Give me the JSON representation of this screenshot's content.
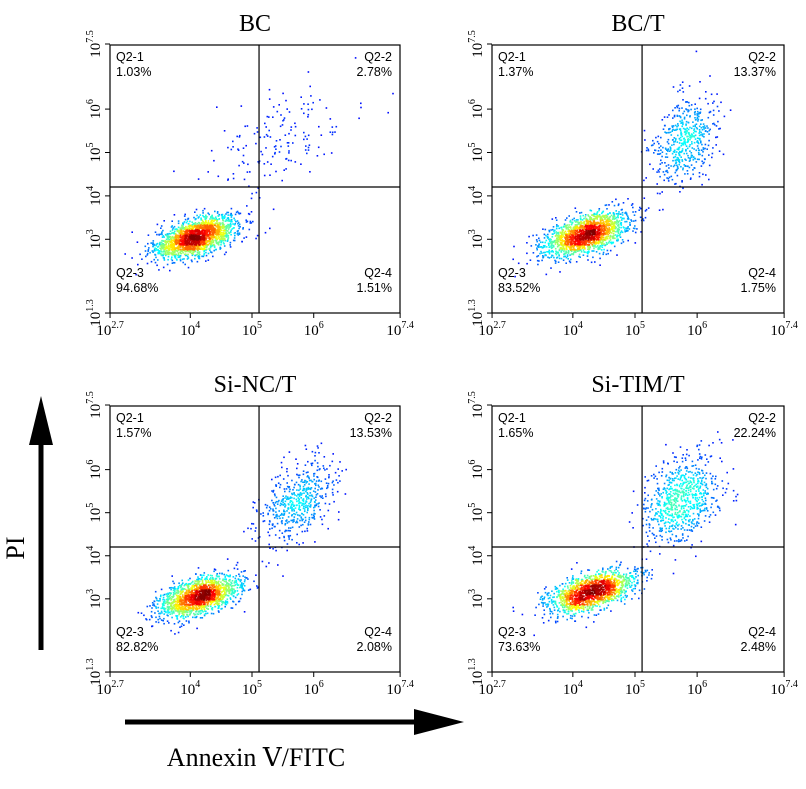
{
  "figure": {
    "x_axis_title": "Annexin Ⅴ/FITC",
    "y_axis_title": "PI"
  },
  "chart_data": [
    {
      "type": "scatter",
      "title": "BC",
      "x_scale": "log",
      "y_scale": "log",
      "xlim": [
        500,
        25000000
      ],
      "ylim": [
        20,
        30000000
      ],
      "x_ticks": [
        {
          "base": "10",
          "exp": "2.7"
        },
        {
          "base": "10",
          "exp": "4"
        },
        {
          "base": "10",
          "exp": "5"
        },
        {
          "base": "10",
          "exp": "6"
        },
        {
          "base": "10",
          "exp": "7.4"
        }
      ],
      "y_ticks": [
        {
          "base": "10",
          "exp": "1.3"
        },
        {
          "base": "10",
          "exp": "3"
        },
        {
          "base": "10",
          "exp": "4"
        },
        {
          "base": "10",
          "exp": "5"
        },
        {
          "base": "10",
          "exp": "6"
        },
        {
          "base": "10",
          "exp": "7.5"
        }
      ],
      "gate": {
        "x": 130000,
        "y": 16000
      },
      "quadrants": [
        {
          "name": "Q2-1",
          "percent": "1.03%"
        },
        {
          "name": "Q2-2",
          "percent": "2.78%"
        },
        {
          "name": "Q2-3",
          "percent": "94.68%"
        },
        {
          "name": "Q2-4",
          "percent": "1.51%"
        }
      ],
      "populations": [
        {
          "log_x": 4.1,
          "log_y": 3.05,
          "sd_x": 0.33,
          "sd_y": 0.24,
          "rho": 0.55,
          "n": 1900
        },
        {
          "log_x": 5.4,
          "log_y": 5.3,
          "sd_x": 0.55,
          "sd_y": 0.6,
          "rho": 0.5,
          "n": 160
        }
      ]
    },
    {
      "type": "scatter",
      "title": "BC/T",
      "x_scale": "log",
      "y_scale": "log",
      "xlim": [
        500,
        25000000
      ],
      "ylim": [
        20,
        30000000
      ],
      "x_ticks": [
        {
          "base": "10",
          "exp": "2.7"
        },
        {
          "base": "10",
          "exp": "4"
        },
        {
          "base": "10",
          "exp": "5"
        },
        {
          "base": "10",
          "exp": "6"
        },
        {
          "base": "10",
          "exp": "7.4"
        }
      ],
      "y_ticks": [
        {
          "base": "10",
          "exp": "1.3"
        },
        {
          "base": "10",
          "exp": "3"
        },
        {
          "base": "10",
          "exp": "4"
        },
        {
          "base": "10",
          "exp": "5"
        },
        {
          "base": "10",
          "exp": "6"
        },
        {
          "base": "10",
          "exp": "7.5"
        }
      ],
      "gate": {
        "x": 130000,
        "y": 16000
      },
      "quadrants": [
        {
          "name": "Q2-1",
          "percent": "1.37%"
        },
        {
          "name": "Q2-2",
          "percent": "13.37%"
        },
        {
          "name": "Q2-3",
          "percent": "83.52%"
        },
        {
          "name": "Q2-4",
          "percent": "1.75%"
        }
      ],
      "populations": [
        {
          "log_x": 4.2,
          "log_y": 3.1,
          "sd_x": 0.35,
          "sd_y": 0.26,
          "rho": 0.55,
          "n": 1650
        },
        {
          "log_x": 5.8,
          "log_y": 5.3,
          "sd_x": 0.25,
          "sd_y": 0.5,
          "rho": 0.35,
          "n": 520
        }
      ]
    },
    {
      "type": "scatter",
      "title": "Si-NC/T",
      "x_scale": "log",
      "y_scale": "log",
      "xlim": [
        500,
        25000000
      ],
      "ylim": [
        20,
        30000000
      ],
      "x_ticks": [
        {
          "base": "10",
          "exp": "2.7"
        },
        {
          "base": "10",
          "exp": "4"
        },
        {
          "base": "10",
          "exp": "5"
        },
        {
          "base": "10",
          "exp": "6"
        },
        {
          "base": "10",
          "exp": "7.4"
        }
      ],
      "y_ticks": [
        {
          "base": "10",
          "exp": "1.3"
        },
        {
          "base": "10",
          "exp": "3"
        },
        {
          "base": "10",
          "exp": "4"
        },
        {
          "base": "10",
          "exp": "5"
        },
        {
          "base": "10",
          "exp": "6"
        },
        {
          "base": "10",
          "exp": "7.5"
        }
      ],
      "gate": {
        "x": 130000,
        "y": 16000
      },
      "quadrants": [
        {
          "name": "Q2-1",
          "percent": "1.57%"
        },
        {
          "name": "Q2-2",
          "percent": "13.53%"
        },
        {
          "name": "Q2-3",
          "percent": "82.82%"
        },
        {
          "name": "Q2-4",
          "percent": "2.08%"
        }
      ],
      "populations": [
        {
          "log_x": 4.15,
          "log_y": 3.05,
          "sd_x": 0.33,
          "sd_y": 0.25,
          "rho": 0.55,
          "n": 1650
        },
        {
          "log_x": 5.75,
          "log_y": 5.25,
          "sd_x": 0.3,
          "sd_y": 0.5,
          "rho": 0.45,
          "n": 520
        }
      ]
    },
    {
      "type": "scatter",
      "title": "Si-TIM/T",
      "x_scale": "log",
      "y_scale": "log",
      "xlim": [
        500,
        25000000
      ],
      "ylim": [
        20,
        30000000
      ],
      "x_ticks": [
        {
          "base": "10",
          "exp": "2.7"
        },
        {
          "base": "10",
          "exp": "4"
        },
        {
          "base": "10",
          "exp": "5"
        },
        {
          "base": "10",
          "exp": "6"
        },
        {
          "base": "10",
          "exp": "7.4"
        }
      ],
      "y_ticks": [
        {
          "base": "10",
          "exp": "1.3"
        },
        {
          "base": "10",
          "exp": "3"
        },
        {
          "base": "10",
          "exp": "4"
        },
        {
          "base": "10",
          "exp": "5"
        },
        {
          "base": "10",
          "exp": "6"
        },
        {
          "base": "10",
          "exp": "7.5"
        }
      ],
      "gate": {
        "x": 130000,
        "y": 16000
      },
      "quadrants": [
        {
          "name": "Q2-1",
          "percent": "1.65%"
        },
        {
          "name": "Q2-2",
          "percent": "22.24%"
        },
        {
          "name": "Q2-3",
          "percent": "73.63%"
        },
        {
          "name": "Q2-4",
          "percent": "2.48%"
        }
      ],
      "populations": [
        {
          "log_x": 4.3,
          "log_y": 3.15,
          "sd_x": 0.35,
          "sd_y": 0.25,
          "rho": 0.55,
          "n": 1500
        },
        {
          "log_x": 5.75,
          "log_y": 5.3,
          "sd_x": 0.3,
          "sd_y": 0.5,
          "rho": 0.35,
          "n": 750
        }
      ]
    }
  ]
}
